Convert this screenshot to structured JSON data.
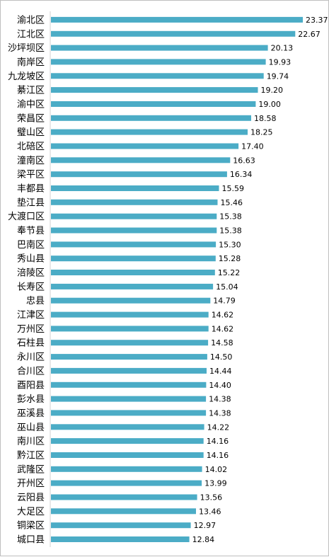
{
  "chart_data": {
    "type": "bar",
    "orientation": "horizontal",
    "title": "",
    "xlabel": "",
    "ylabel": "",
    "xlim": [
      0,
      23.37
    ],
    "grid": false,
    "legend": "none",
    "bar_color": "#4bacc6",
    "label_color": "#000000",
    "categories": [
      "渝北区",
      "江北区",
      "沙坪坝区",
      "南岸区",
      "九龙坡区",
      "綦江区",
      "渝中区",
      "荣昌区",
      "璧山区",
      "北碚区",
      "潼南区",
      "梁平区",
      "丰都县",
      "垫江县",
      "大渡口区",
      "奉节县",
      "巴南区",
      "秀山县",
      "涪陵区",
      "长寿区",
      "忠县",
      "江津区",
      "万州区",
      "石柱县",
      "永川区",
      "合川区",
      "酉阳县",
      "彭水县",
      "巫溪县",
      "巫山县",
      "南川区",
      "黔江区",
      "武隆区",
      "开州区",
      "云阳县",
      "大足区",
      "铜梁区",
      "城口县"
    ],
    "values": [
      23.37,
      22.67,
      20.13,
      19.93,
      19.74,
      19.2,
      19.0,
      18.58,
      18.25,
      17.4,
      16.63,
      16.34,
      15.59,
      15.46,
      15.38,
      15.38,
      15.3,
      15.28,
      15.22,
      15.04,
      14.79,
      14.62,
      14.62,
      14.58,
      14.5,
      14.44,
      14.4,
      14.38,
      14.38,
      14.22,
      14.16,
      14.16,
      14.02,
      13.99,
      13.56,
      13.46,
      12.97,
      12.84
    ],
    "value_labels": [
      "23.37",
      "22.67",
      "20.13",
      "19.93",
      "19.74",
      "19.20",
      "19.00",
      "18.58",
      "18.25",
      "17.40",
      "16.63",
      "16.34",
      "15.59",
      "15.46",
      "15.38",
      "15.38",
      "15.30",
      "15.28",
      "15.22",
      "15.04",
      "14.79",
      "14.62",
      "14.62",
      "14.58",
      "14.50",
      "14.44",
      "14.40",
      "14.38",
      "14.38",
      "14.22",
      "14.16",
      "14.16",
      "14.02",
      "13.99",
      "13.56",
      "13.46",
      "12.97",
      "12.84"
    ]
  }
}
